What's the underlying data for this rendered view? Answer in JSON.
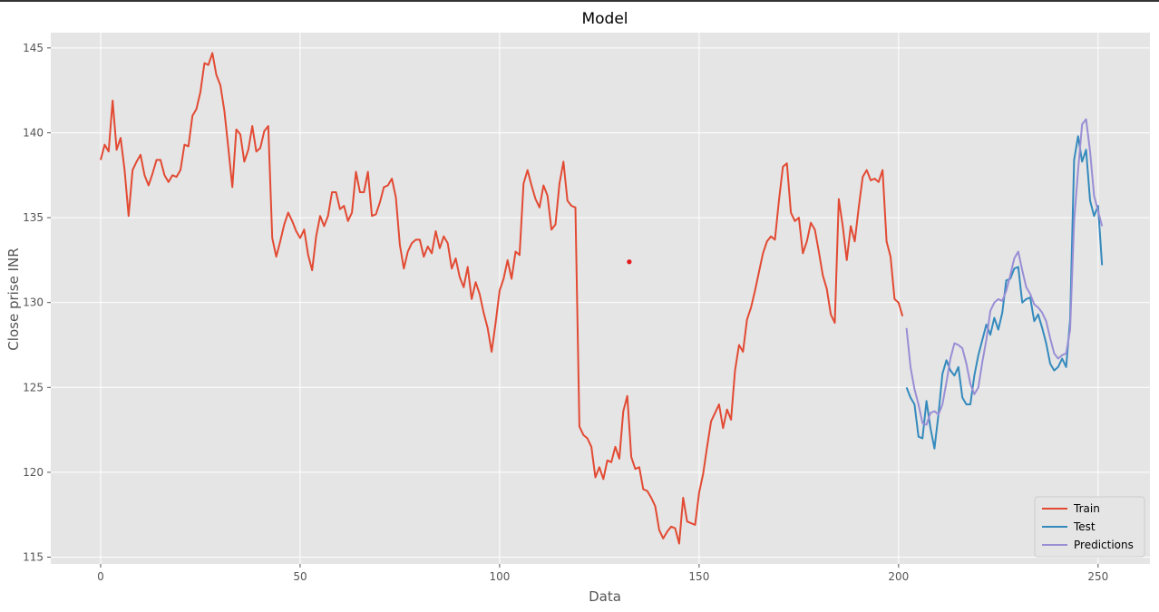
{
  "chart_data": {
    "type": "line",
    "title": "Model",
    "xlabel": "Data",
    "ylabel": "Close prise INR",
    "xlim": [
      -12.5,
      263
    ],
    "ylim": [
      114.6,
      145.9
    ],
    "xticks": [
      0,
      50,
      100,
      150,
      200,
      250
    ],
    "yticks": [
      115,
      120,
      125,
      130,
      135,
      140,
      145
    ],
    "grid": true,
    "legend_position": "lower-right",
    "annotation_point": {
      "x": 132.5,
      "y": 132.4,
      "color": "#e41a1c"
    },
    "series": [
      {
        "name": "Train",
        "color": "#E24A33",
        "x_start": 0,
        "values": [
          138.4,
          139.3,
          138.9,
          141.9,
          139.0,
          139.7,
          137.8,
          135.1,
          137.8,
          138.3,
          138.7,
          137.5,
          136.9,
          137.6,
          138.4,
          138.4,
          137.5,
          137.1,
          137.5,
          137.4,
          137.8,
          139.3,
          139.2,
          141.0,
          141.4,
          142.4,
          144.1,
          144.0,
          144.7,
          143.4,
          142.8,
          141.3,
          139.1,
          136.8,
          140.2,
          139.9,
          138.3,
          139.0,
          140.4,
          138.9,
          139.1,
          140.1,
          140.4,
          133.8,
          132.7,
          133.6,
          134.6,
          135.3,
          134.8,
          134.2,
          133.8,
          134.3,
          132.8,
          131.9,
          133.9,
          135.1,
          134.5,
          135.1,
          136.5,
          136.5,
          135.5,
          135.7,
          134.8,
          135.3,
          137.7,
          136.5,
          136.5,
          137.7,
          135.1,
          135.2,
          135.9,
          136.8,
          136.9,
          137.3,
          136.2,
          133.4,
          132.0,
          133.0,
          133.5,
          133.7,
          133.7,
          132.7,
          133.3,
          132.9,
          134.2,
          133.2,
          133.9,
          133.5,
          132.0,
          132.6,
          131.5,
          130.9,
          132.1,
          130.2,
          131.2,
          130.5,
          129.4,
          128.5,
          127.1,
          128.8,
          130.7,
          131.4,
          132.5,
          131.4,
          133.0,
          132.8,
          137.0,
          137.8,
          136.9,
          136.1,
          135.6,
          136.9,
          136.3,
          134.3,
          134.6,
          137.0,
          138.3,
          136.0,
          135.7,
          135.6,
          122.7,
          122.2,
          122.0,
          121.5,
          119.7,
          120.3,
          119.6,
          120.7,
          120.6,
          121.5,
          120.8,
          123.6,
          124.5,
          120.9,
          120.2,
          120.3,
          119.0,
          118.9,
          118.5,
          118.0,
          116.6,
          116.1,
          116.5,
          116.8,
          116.7,
          115.8,
          118.5,
          117.1,
          117.0,
          116.9,
          118.8,
          119.9,
          121.5,
          123.0,
          123.5,
          124.0,
          122.6,
          123.7,
          123.1,
          126.0,
          127.5,
          127.1,
          129.0,
          129.7,
          130.7,
          131.8,
          132.9,
          133.6,
          133.9,
          133.7,
          136.0,
          138.0,
          138.2,
          135.3,
          134.8,
          135.0,
          132.9,
          133.6,
          134.7,
          134.3,
          133.0,
          131.6,
          130.8,
          129.3,
          128.8,
          136.1,
          134.5,
          132.5,
          134.5,
          133.6,
          135.6,
          137.4,
          137.8,
          137.2,
          137.3,
          137.1,
          137.8,
          133.6,
          132.7,
          130.2,
          130.0,
          129.2
        ]
      },
      {
        "name": "Test",
        "color": "#348ABD",
        "x_start": 202,
        "values": [
          125.0,
          124.4,
          124.0,
          122.1,
          122.0,
          124.2,
          122.6,
          121.4,
          123.4,
          125.8,
          126.6,
          126.0,
          125.7,
          126.2,
          124.4,
          124.0,
          124.0,
          125.7,
          126.9,
          127.8,
          128.7,
          128.1,
          129.1,
          128.4,
          129.4,
          131.3,
          131.4,
          132.0,
          132.1,
          130.0,
          130.2,
          130.3,
          128.9,
          129.3,
          128.5,
          127.6,
          126.4,
          126.0,
          126.2,
          126.7,
          126.2,
          129.0,
          138.4,
          139.8,
          138.3,
          139.0,
          136.0,
          135.1,
          135.7,
          132.2
        ]
      },
      {
        "name": "Predictions",
        "color": "#988ED5",
        "x_start": 202,
        "values": [
          128.5,
          126.2,
          124.9,
          124.0,
          122.9,
          122.8,
          123.5,
          123.6,
          123.4,
          124.0,
          125.3,
          126.7,
          127.6,
          127.5,
          127.3,
          126.4,
          125.2,
          124.6,
          125.0,
          126.5,
          127.8,
          129.5,
          130.0,
          130.2,
          130.1,
          130.7,
          131.6,
          132.6,
          133.0,
          131.9,
          130.9,
          130.5,
          129.9,
          129.7,
          129.4,
          128.9,
          127.9,
          127.0,
          126.7,
          126.9,
          127.0,
          128.4,
          134.8,
          137.8,
          140.5,
          140.8,
          138.9,
          136.3,
          135.4,
          134.5
        ]
      }
    ]
  }
}
